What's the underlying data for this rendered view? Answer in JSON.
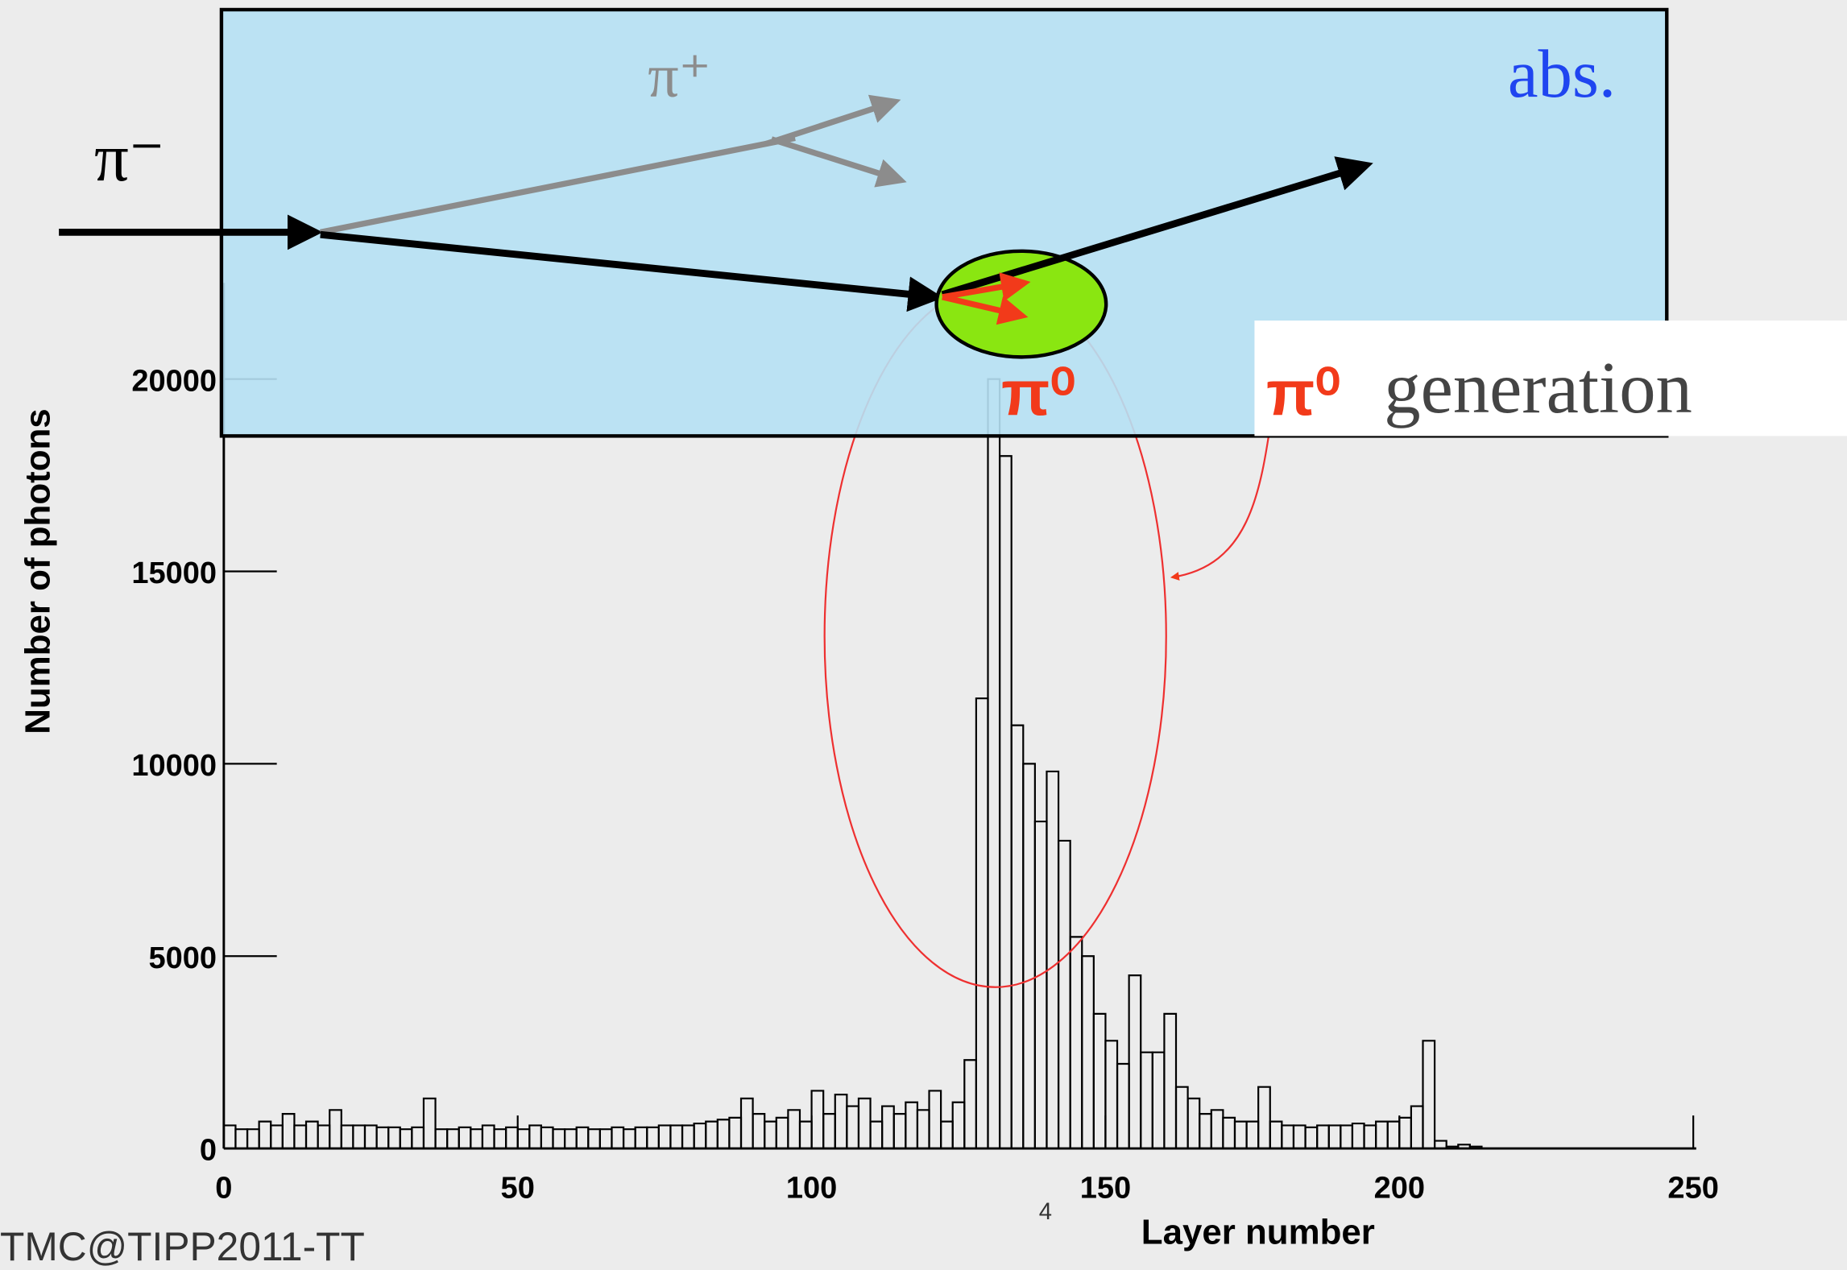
{
  "chart_data": {
    "type": "histogram",
    "x_label": "Layer number",
    "y_label": "Number of photons",
    "bins": [
      0,
      2,
      4,
      6,
      8,
      10,
      12,
      14,
      16,
      18,
      20,
      22,
      24,
      26,
      28,
      30,
      32,
      34,
      36,
      38,
      40,
      42,
      44,
      46,
      48,
      50,
      52,
      54,
      56,
      58,
      60,
      62,
      64,
      66,
      68,
      70,
      72,
      74,
      76,
      78,
      80,
      82,
      84,
      86,
      88,
      90,
      92,
      94,
      96,
      98,
      100,
      102,
      104,
      106,
      108,
      110,
      112,
      114,
      116,
      118,
      120,
      122,
      124,
      126,
      128,
      130,
      132,
      134,
      136,
      138,
      140,
      142,
      144,
      146,
      148,
      150,
      152,
      154,
      156,
      158,
      160,
      162,
      164,
      166,
      168,
      170,
      172,
      174,
      176,
      178,
      180,
      182,
      184,
      186,
      188,
      190,
      192,
      194,
      196,
      198,
      200,
      202,
      204,
      206,
      208,
      210,
      212,
      214,
      216
    ],
    "values": [
      600,
      500,
      500,
      700,
      600,
      900,
      600,
      700,
      600,
      1000,
      600,
      600,
      600,
      550,
      550,
      500,
      550,
      1300,
      500,
      500,
      550,
      500,
      600,
      500,
      550,
      500,
      600,
      550,
      500,
      500,
      550,
      500,
      500,
      550,
      500,
      550,
      550,
      600,
      600,
      600,
      650,
      700,
      750,
      800,
      1300,
      900,
      700,
      800,
      1000,
      700,
      1500,
      900,
      1400,
      1100,
      1300,
      700,
      1100,
      900,
      1200,
      1000,
      1500,
      700,
      1200,
      2300,
      11700,
      20000,
      18000,
      11000,
      10000,
      8500,
      9800,
      8000,
      5500,
      5000,
      3500,
      2800,
      2200,
      4500,
      2500,
      2500,
      3500,
      1600,
      1300,
      900,
      1000,
      800,
      700,
      700,
      1600,
      700,
      600,
      600,
      550,
      600,
      600,
      600,
      650,
      600,
      700,
      700,
      800,
      1100,
      2800,
      200,
      50,
      100,
      50,
      0
    ],
    "color": "#000000",
    "xlim": [
      0,
      250.5
    ],
    "ylim": [
      0,
      22500
    ],
    "xticks": [
      0,
      50,
      100,
      150,
      200,
      250
    ],
    "yticks": [
      0,
      5000,
      10000,
      15000,
      20000
    ],
    "annotations": {
      "pi_plus": "π⁺",
      "pi_minus": "π⁻",
      "absorber": "abs.",
      "pi_zero": "π⁰",
      "generation_symbol": "π⁰",
      "generation_text": "generation"
    }
  },
  "footer": {
    "left": "TMC@TIPP2011-TT",
    "page": "4"
  }
}
